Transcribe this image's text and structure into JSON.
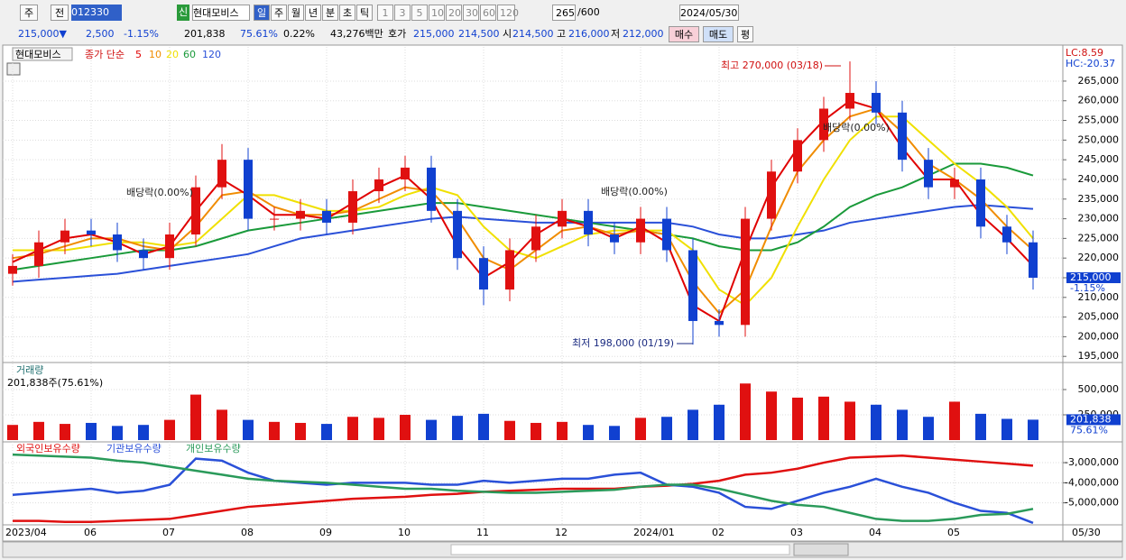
{
  "toolbar": {
    "row1": [
      "주",
      "전",
      "012330",
      "신",
      "현대모비스",
      "일",
      "주",
      "월",
      "년",
      "분",
      "초",
      "틱",
      "1",
      "3",
      "5",
      "10",
      "20",
      "30",
      "60",
      "120",
      "265",
      "/600",
      "2024/05/30"
    ],
    "row2": [
      "215,000▼",
      "2,500",
      "-1.15%",
      "201,838",
      "75.61%",
      "0.22%",
      "43,276백만",
      "호가",
      "215,000",
      "214,500",
      "시",
      "214,500",
      "고",
      "216,000",
      "저",
      "212,000",
      "매수",
      "매도",
      "평"
    ]
  },
  "chart_data": [
    {
      "type": "candlestick",
      "title": "현대모비스",
      "subtitle": "종가 단순",
      "categories": [
        "2023/04",
        null,
        null,
        "06",
        null,
        null,
        "07",
        null,
        null,
        "08",
        null,
        null,
        "09",
        null,
        null,
        "10",
        null,
        null,
        "11",
        null,
        null,
        "12",
        null,
        null,
        "2024/01",
        null,
        null,
        "02",
        null,
        null,
        "03",
        null,
        null,
        "04",
        null,
        null,
        "05",
        null,
        null,
        null
      ],
      "last_date_label": "05/30",
      "ohlc": {
        "open": [
          216000,
          218000,
          224000,
          227000,
          226000,
          222000,
          220000,
          226000,
          238000,
          245000,
          230000,
          230000,
          232000,
          229000,
          237000,
          240000,
          243000,
          232000,
          220000,
          212000,
          222000,
          228000,
          232000,
          226000,
          224000,
          230000,
          222000,
          204000,
          203000,
          230000,
          242000,
          250000,
          258000,
          262000,
          257000,
          245000,
          238000,
          240000,
          228000,
          224000
        ],
        "high": [
          221000,
          227000,
          230000,
          230000,
          229000,
          225000,
          229000,
          241000,
          249000,
          248000,
          233000,
          235000,
          235000,
          240000,
          243000,
          246000,
          246000,
          235000,
          223000,
          225000,
          231000,
          235000,
          235000,
          229000,
          233000,
          233000,
          225000,
          207000,
          233000,
          245000,
          253000,
          261000,
          270000,
          265000,
          260000,
          248000,
          243000,
          243000,
          231000,
          227000
        ],
        "low": [
          213000,
          215000,
          221000,
          223000,
          219000,
          217000,
          217000,
          223000,
          235000,
          227000,
          227000,
          227000,
          226000,
          226000,
          234000,
          237000,
          229000,
          217000,
          208000,
          209000,
          219000,
          225000,
          223000,
          221000,
          221000,
          219000,
          198000,
          200000,
          200000,
          227000,
          239000,
          247000,
          255000,
          254000,
          242000,
          235000,
          235000,
          225000,
          221000,
          212000
        ],
        "close": [
          218000,
          224000,
          227000,
          226000,
          222000,
          220000,
          226000,
          238000,
          245000,
          230000,
          230000,
          232000,
          229000,
          237000,
          240000,
          243000,
          232000,
          220000,
          212000,
          222000,
          228000,
          232000,
          226000,
          224000,
          230000,
          222000,
          204000,
          203000,
          230000,
          242000,
          250000,
          258000,
          262000,
          257000,
          245000,
          238000,
          240000,
          228000,
          224000,
          215000
        ]
      },
      "up_color": "#e01010",
      "down_color": "#1040d0",
      "series": [
        {
          "name": "5",
          "color": "#e00000",
          "values": [
            219000,
            222000,
            225000,
            226000,
            224000,
            221000,
            223000,
            232000,
            240000,
            236000,
            231000,
            231000,
            230000,
            234000,
            238000,
            241000,
            235000,
            223000,
            215000,
            219000,
            226000,
            230000,
            228000,
            225000,
            228000,
            224000,
            208000,
            204000,
            222000,
            238000,
            248000,
            255000,
            260000,
            258000,
            248000,
            240000,
            240000,
            231000,
            225000,
            218000
          ]
        },
        {
          "name": "10",
          "color": "#f08c00",
          "values": [
            220000,
            221000,
            223000,
            225000,
            225000,
            223000,
            222000,
            228000,
            236000,
            237000,
            233000,
            231000,
            231000,
            232000,
            235000,
            238000,
            237000,
            230000,
            220000,
            217000,
            222000,
            227000,
            228000,
            226000,
            227000,
            226000,
            214000,
            206000,
            212000,
            228000,
            242000,
            250000,
            256000,
            258000,
            252000,
            244000,
            240000,
            235000,
            228000,
            222000
          ]
        },
        {
          "name": "20",
          "color": "#f0e000",
          "values": [
            222000,
            222000,
            222000,
            223000,
            224000,
            224000,
            223000,
            224000,
            230000,
            236000,
            236000,
            234000,
            232000,
            232000,
            233000,
            236000,
            238000,
            236000,
            228000,
            222000,
            220000,
            223000,
            226000,
            227000,
            227000,
            227000,
            222000,
            212000,
            208000,
            215000,
            228000,
            240000,
            250000,
            256000,
            256000,
            250000,
            244000,
            239000,
            233000,
            225000
          ]
        },
        {
          "name": "60",
          "color": "#1a9a3a",
          "values": [
            217000,
            218000,
            219000,
            220000,
            221000,
            222000,
            222000,
            223000,
            225000,
            227000,
            228000,
            229000,
            230000,
            231000,
            232000,
            233000,
            234000,
            234000,
            233000,
            232000,
            231000,
            230000,
            229000,
            228000,
            227000,
            226000,
            225000,
            223000,
            222000,
            222000,
            224000,
            228000,
            233000,
            236000,
            238000,
            241000,
            244000,
            244000,
            243000,
            241000
          ]
        },
        {
          "name": "120",
          "color": "#2a50d8",
          "values": [
            214000,
            214500,
            215000,
            215500,
            216000,
            217000,
            218000,
            219000,
            220000,
            221000,
            223000,
            225000,
            226000,
            227000,
            228000,
            229000,
            230000,
            230500,
            230000,
            229500,
            229000,
            229000,
            229000,
            229000,
            229000,
            229000,
            228000,
            226000,
            225000,
            225000,
            226000,
            227000,
            229000,
            230000,
            231000,
            232000,
            233000,
            233500,
            233000,
            232500
          ]
        }
      ],
      "ylim": [
        193900,
        273700
      ],
      "yticks": [
        {
          "value": 195000,
          "label": "195,000"
        },
        {
          "value": 200000,
          "label": "200,000"
        },
        {
          "value": 205000,
          "label": "205,000"
        },
        {
          "value": 210000,
          "label": "210,000"
        },
        {
          "value": 215000,
          "label": "215,000"
        },
        {
          "value": 220000,
          "label": "220,000"
        },
        {
          "value": 225000,
          "label": "225,000"
        },
        {
          "value": 230000,
          "label": "230,000"
        },
        {
          "value": 235000,
          "label": "235,000"
        },
        {
          "value": 240000,
          "label": "240,000"
        },
        {
          "value": 245000,
          "label": "245,000"
        },
        {
          "value": 250000,
          "label": "250,000"
        },
        {
          "value": 255000,
          "label": "255,000"
        },
        {
          "value": 260000,
          "label": "260,000"
        },
        {
          "value": 265000,
          "label": "265,000"
        }
      ],
      "grid": true,
      "annotations": [
        "최고 270,000 (03/18)",
        "최저 198,000 (01/19)",
        "배당락(0.00%)",
        "배당락(0.00%)",
        "배당락(0.00%)"
      ],
      "corner_labels": [
        "LC:8.59",
        "HC:-20.37"
      ],
      "last_value": 215000,
      "last_value_label": "215,000",
      "change_label": "-1.15%"
    },
    {
      "type": "bar",
      "title": "거래량",
      "subtitle": "201,838주(75.61%)",
      "values": [
        150000,
        180000,
        160000,
        170000,
        140000,
        150000,
        200000,
        450000,
        300000,
        200000,
        180000,
        170000,
        160000,
        230000,
        220000,
        250000,
        200000,
        240000,
        260000,
        190000,
        170000,
        180000,
        150000,
        140000,
        220000,
        230000,
        300000,
        350000,
        560000,
        480000,
        420000,
        430000,
        380000,
        350000,
        300000,
        230000,
        380000,
        260000,
        210000,
        201838
      ],
      "up_color": "#e01010",
      "down_color": "#1040d0",
      "ylim": [
        0,
        741000
      ],
      "yticks": [
        {
          "value": 250000,
          "label": "250,000"
        },
        {
          "value": 500000,
          "label": "500,000"
        }
      ],
      "grid": true,
      "last_value_label": "201,838",
      "ratio_label": "75.61%"
    },
    {
      "type": "line",
      "series": [
        {
          "name": "외국인보유수량",
          "color": "#e01010",
          "values": [
            -5900000,
            -5900000,
            -5950000,
            -5950000,
            -5900000,
            -5850000,
            -5800000,
            -5600000,
            -5400000,
            -5200000,
            -5100000,
            -5000000,
            -4900000,
            -4800000,
            -4750000,
            -4700000,
            -4600000,
            -4550000,
            -4450000,
            -4400000,
            -4350000,
            -4300000,
            -4300000,
            -4300000,
            -4200000,
            -4150000,
            -4050000,
            -3900000,
            -3600000,
            -3500000,
            -3300000,
            -3000000,
            -2750000,
            -2700000,
            -2650000,
            -2750000,
            -2850000,
            -2950000,
            -3050000,
            -3150000
          ]
        },
        {
          "name": "기관보유수량",
          "color": "#2a50d8",
          "values": [
            -4600000,
            -4500000,
            -4400000,
            -4300000,
            -4500000,
            -4400000,
            -4100000,
            -2800000,
            -2900000,
            -3500000,
            -3900000,
            -4000000,
            -4100000,
            -4000000,
            -4000000,
            -4000000,
            -4100000,
            -4100000,
            -3900000,
            -4000000,
            -3900000,
            -3800000,
            -3800000,
            -3600000,
            -3500000,
            -4100000,
            -4200000,
            -4500000,
            -5200000,
            -5300000,
            -4900000,
            -4500000,
            -4200000,
            -3800000,
            -4200000,
            -4500000,
            -5000000,
            -5400000,
            -5500000,
            -6000000
          ]
        },
        {
          "name": "개인보유수량",
          "color": "#2a9a5a",
          "values": [
            -2600000,
            -2650000,
            -2700000,
            -2750000,
            -2900000,
            -3000000,
            -3200000,
            -3400000,
            -3600000,
            -3800000,
            -3900000,
            -3950000,
            -4000000,
            -4100000,
            -4200000,
            -4300000,
            -4300000,
            -4400000,
            -4450000,
            -4500000,
            -4500000,
            -4450000,
            -4400000,
            -4350000,
            -4200000,
            -4100000,
            -4100000,
            -4300000,
            -4600000,
            -4900000,
            -5100000,
            -5200000,
            -5500000,
            -5800000,
            -5900000,
            -5900000,
            -5800000,
            -5600000,
            -5550000,
            -5300000
          ]
        }
      ],
      "ylim": [
        -6050000,
        -2100000
      ],
      "yticks": [
        {
          "value": -5000000,
          "label": "-5,000,000"
        },
        {
          "value": -4000000,
          "label": "-4,000,000"
        },
        {
          "value": -3000000,
          "label": "-3,000,000"
        }
      ],
      "grid": true
    }
  ]
}
